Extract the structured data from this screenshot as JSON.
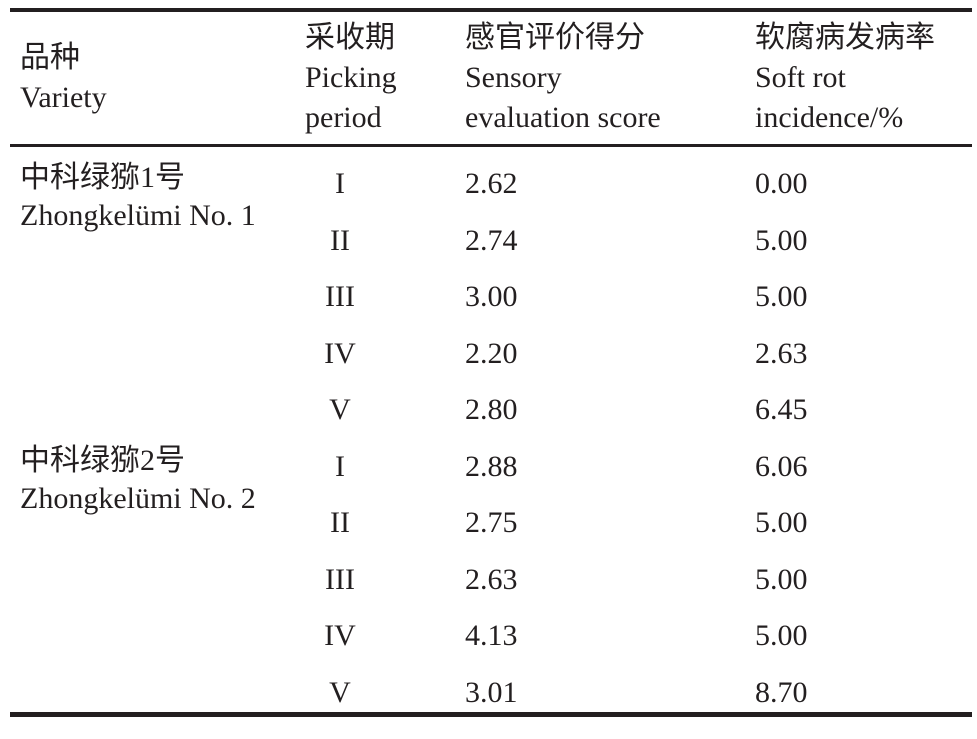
{
  "colors": {
    "background": "#ffffff",
    "text": "#231f20",
    "rule": "#231f20"
  },
  "table": {
    "header": {
      "col1": {
        "zh": "品种",
        "en": "Variety"
      },
      "col2": {
        "zh": "采收期",
        "en1": "Picking",
        "en2": "period"
      },
      "col3": {
        "zh": "感官评价得分",
        "en1": "Sensory",
        "en2": "evaluation score"
      },
      "col4": {
        "zh": "软腐病发病率",
        "en1": "Soft rot",
        "en2": "incidence/%"
      }
    },
    "groups": [
      {
        "variety_zh": "中科绿猕1号",
        "variety_en": "Zhongkelümi No. 1",
        "rows": [
          {
            "period": "I",
            "score": "2.62",
            "incidence": "0.00"
          },
          {
            "period": "II",
            "score": "2.74",
            "incidence": "5.00"
          },
          {
            "period": "III",
            "score": "3.00",
            "incidence": "5.00"
          },
          {
            "period": "IV",
            "score": "2.20",
            "incidence": "2.63"
          },
          {
            "period": "V",
            "score": "2.80",
            "incidence": "6.45"
          }
        ]
      },
      {
        "variety_zh": "中科绿猕2号",
        "variety_en": "Zhongkelümi No. 2",
        "rows": [
          {
            "period": "I",
            "score": "2.88",
            "incidence": "6.06"
          },
          {
            "period": "II",
            "score": "2.75",
            "incidence": "5.00"
          },
          {
            "period": "III",
            "score": "2.63",
            "incidence": "5.00"
          },
          {
            "period": "IV",
            "score": "4.13",
            "incidence": "5.00"
          },
          {
            "period": "V",
            "score": "3.01",
            "incidence": "8.70"
          }
        ]
      }
    ]
  }
}
